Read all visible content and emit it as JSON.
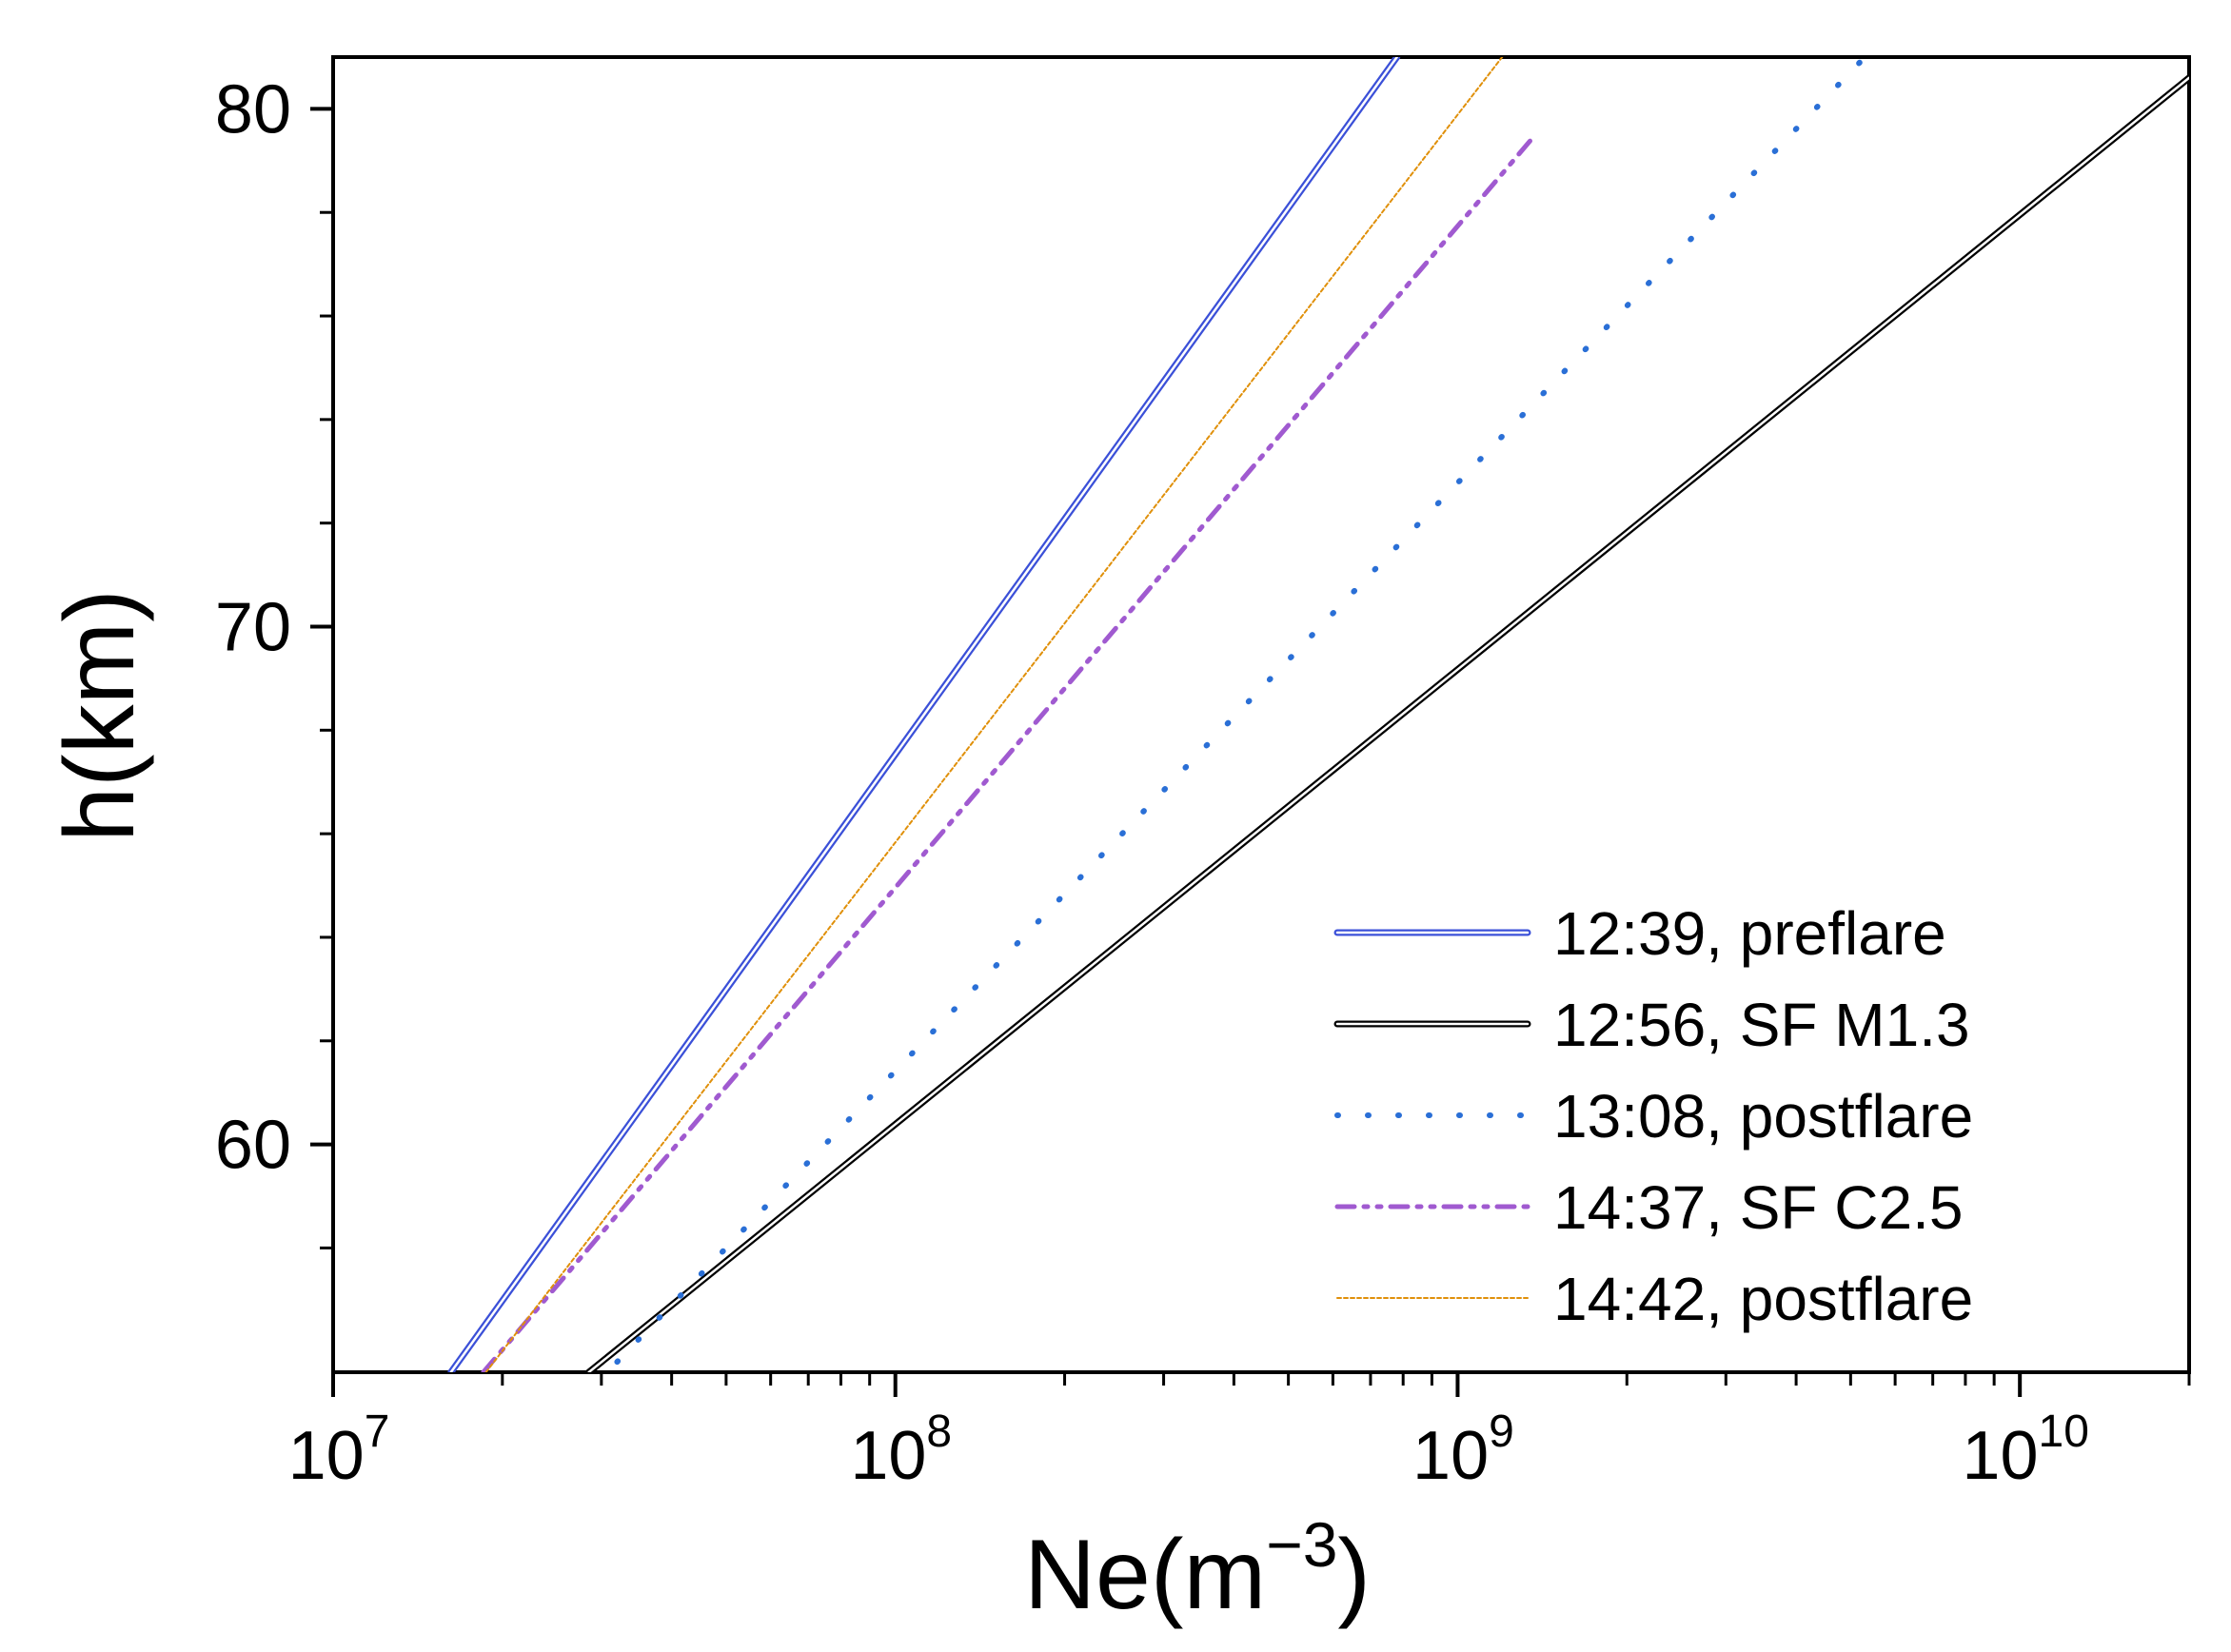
{
  "chart_data": {
    "type": "line",
    "title": "",
    "xlabel": {
      "base": "Ne(m",
      "exponent": "−3",
      "close": ")"
    },
    "ylabel": "h(km)",
    "x_scale": "log",
    "xlim": [
      10000000,
      20000000000
    ],
    "ylim": [
      55.6,
      81.0
    ],
    "x_ticks": [
      {
        "value": 10000000,
        "base": "10",
        "exp": "7"
      },
      {
        "value": 100000000,
        "base": "10",
        "exp": "8"
      },
      {
        "value": 1000000000,
        "base": "10",
        "exp": "9"
      },
      {
        "value": 10000000000,
        "base": "10",
        "exp": "10"
      }
    ],
    "y_ticks": [
      {
        "value": 60,
        "label": "60"
      },
      {
        "value": 70,
        "label": "70"
      },
      {
        "value": 80,
        "label": "80"
      }
    ],
    "y_minor_ticks": [
      58,
      62,
      64,
      66,
      68,
      72,
      74,
      76,
      78
    ],
    "legend_position": "bottom-right",
    "series": [
      {
        "name": "12:39, preflare",
        "color": "#3b50d8",
        "style": "double",
        "points": [
          [
            16200000,
            55.6
          ],
          [
            780000000,
            81.0
          ]
        ]
      },
      {
        "name": "12:56, SF M1.3",
        "color": "#000000",
        "style": "double",
        "points": [
          [
            28500000,
            55.6
          ],
          [
            20000000000,
            80.6
          ]
        ]
      },
      {
        "name": "13:08, postflare",
        "color": "#2a6fd6",
        "style": "dotted",
        "points": [
          [
            32000000,
            55.8
          ],
          [
            5300000000,
            81.0
          ]
        ]
      },
      {
        "name": "14:37, SF C2.5",
        "color": "#a05ad0",
        "style": "dashdot",
        "points": [
          [
            18500000,
            55.6
          ],
          [
            1350000000,
            79.4
          ]
        ]
      },
      {
        "name": "14:42, postflare",
        "color": "#e0900a",
        "style": "thin",
        "points": [
          [
            18700000,
            55.6
          ],
          [
            1200000000,
            81.0
          ]
        ]
      }
    ]
  }
}
